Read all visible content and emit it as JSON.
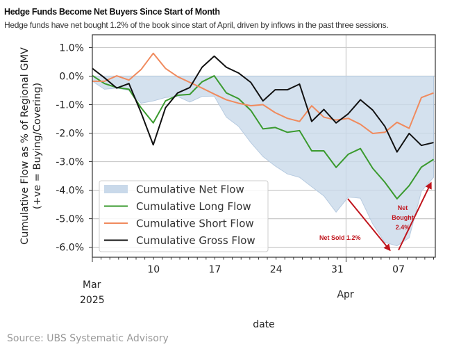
{
  "header": {
    "title": "Hedge Funds Become Net Buyers Since Start of Month",
    "subtitle": "Hedge funds have net bought 1.2% of the book since start of April, driven by inflows in the past three sessions."
  },
  "source": "Source: UBS Systematic Advisory",
  "chart_data": {
    "type": "line",
    "xlabel": "date",
    "ylabel": [
      "Cumulative Flow as % of Regional GMV",
      "(+ve = Buying/Covering)"
    ],
    "x_unit": "days since 2025-03-03",
    "xlim": [
      0,
      39.2
    ],
    "ylim": [
      -6.35,
      1.45
    ],
    "y_ticks": [
      1,
      0,
      -1,
      -2,
      -3,
      -4,
      -5,
      -6
    ],
    "y_tick_labels": [
      "1.0%",
      "0.0%",
      "-1.0%",
      "-2.0%",
      "-3.0%",
      "-4.0%",
      "-5.0%",
      "-6.0%"
    ],
    "x_ticks": [
      7,
      14,
      21,
      28,
      35
    ],
    "x_tick_labels": [
      "10",
      "17",
      "24",
      "31",
      "07"
    ],
    "month_labels": [
      {
        "day": 0,
        "label": "Mar",
        "year": "2025"
      },
      {
        "day": 29,
        "label": "Apr"
      }
    ],
    "vertical_grid_day": 29,
    "grid": true,
    "legend_position": "lower-left",
    "x": [
      0,
      1.39,
      2.79,
      4.18,
      5.57,
      6.96,
      8.36,
      9.75,
      11.14,
      12.54,
      13.93,
      15.32,
      16.71,
      18.11,
      19.5,
      20.89,
      22.29,
      23.68,
      25.07,
      26.46,
      27.86,
      29.25,
      30.64,
      32.04,
      33.43,
      34.82,
      36.21,
      37.61,
      39
    ],
    "series": [
      {
        "name": "Cumulative Net Flow",
        "style": "area",
        "color": "#c9d9ea",
        "values": [
          -0.18,
          -0.46,
          -0.42,
          -0.5,
          -0.95,
          -0.87,
          -0.75,
          -0.71,
          -0.91,
          -0.71,
          -0.7,
          -1.44,
          -1.76,
          -2.33,
          -2.82,
          -3.15,
          -3.43,
          -3.55,
          -3.88,
          -4.2,
          -4.77,
          -4.24,
          -4.28,
          -5.18,
          -5.83,
          -5.95,
          -5.67,
          -4.04,
          -3.55
        ]
      },
      {
        "name": "Cumulative Long Flow",
        "style": "line",
        "color": "#3a9a2e",
        "values": [
          0.02,
          -0.26,
          -0.4,
          -0.46,
          -1.11,
          -1.64,
          -0.87,
          -0.67,
          -0.64,
          -0.2,
          0.01,
          -0.59,
          -0.79,
          -1.2,
          -1.85,
          -1.8,
          -1.97,
          -1.91,
          -2.62,
          -2.62,
          -3.2,
          -2.74,
          -2.54,
          -3.23,
          -3.72,
          -4.3,
          -3.84,
          -3.19,
          -2.92
        ]
      },
      {
        "name": "Cumulative Short Flow",
        "style": "line",
        "color": "#f08a5d",
        "values": [
          -0.18,
          -0.18,
          0.01,
          -0.14,
          0.23,
          0.8,
          0.27,
          -0.02,
          -0.22,
          -0.42,
          -0.63,
          -0.83,
          -0.95,
          -1.04,
          -1.0,
          -1.28,
          -1.48,
          -1.59,
          -1.04,
          -1.44,
          -1.54,
          -1.48,
          -1.69,
          -2.01,
          -1.97,
          -1.62,
          -1.83,
          -0.75,
          -0.59
        ]
      },
      {
        "name": "Cumulative Gross Flow",
        "style": "line",
        "color": "#111111",
        "values": [
          0.27,
          -0.06,
          -0.42,
          -0.26,
          -1.28,
          -2.41,
          -1.11,
          -0.59,
          -0.4,
          0.31,
          0.7,
          0.31,
          0.11,
          -0.22,
          -0.87,
          -0.48,
          -0.48,
          -0.28,
          -1.59,
          -1.17,
          -1.64,
          -1.32,
          -0.83,
          -1.19,
          -1.76,
          -2.66,
          -2.01,
          -2.43,
          -2.33
        ]
      }
    ],
    "annotations": [
      {
        "text": "Net Sold  1.2%",
        "color": "#c0151d",
        "arrow_from": [
          29.2,
          -4.3
        ],
        "arrow_to": [
          34.0,
          -6.1
        ]
      },
      {
        "lines": [
          "Net",
          "Bought",
          "2.4%"
        ],
        "color": "#c0151d",
        "arrow_from": [
          35.0,
          -6.1
        ],
        "arrow_to": [
          38.7,
          -3.75
        ]
      }
    ]
  }
}
